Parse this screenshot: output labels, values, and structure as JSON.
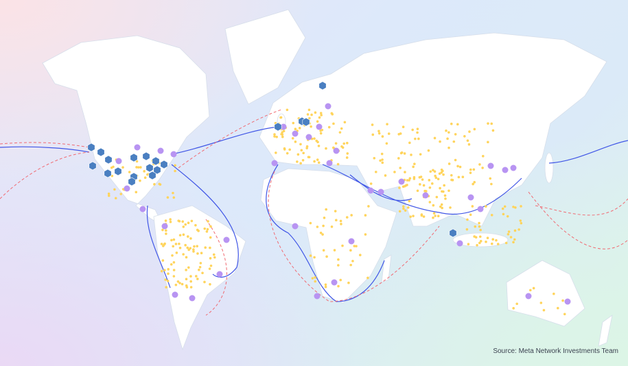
{
  "map": {
    "source_text": "Source: Meta Network Investments Team",
    "colors": {
      "land": "#ffffff",
      "data_center_hexagon": "#4a7fc1",
      "network_site_circle": "#b894f2",
      "edge_point_dot": "#ffd45c",
      "subsea_cable_solid": "#3f55e6",
      "subsea_cable_dashed": "#f06a72"
    },
    "marker_types": [
      "hexagon",
      "circle",
      "dot"
    ],
    "line_types": [
      "solid",
      "dashed"
    ]
  }
}
